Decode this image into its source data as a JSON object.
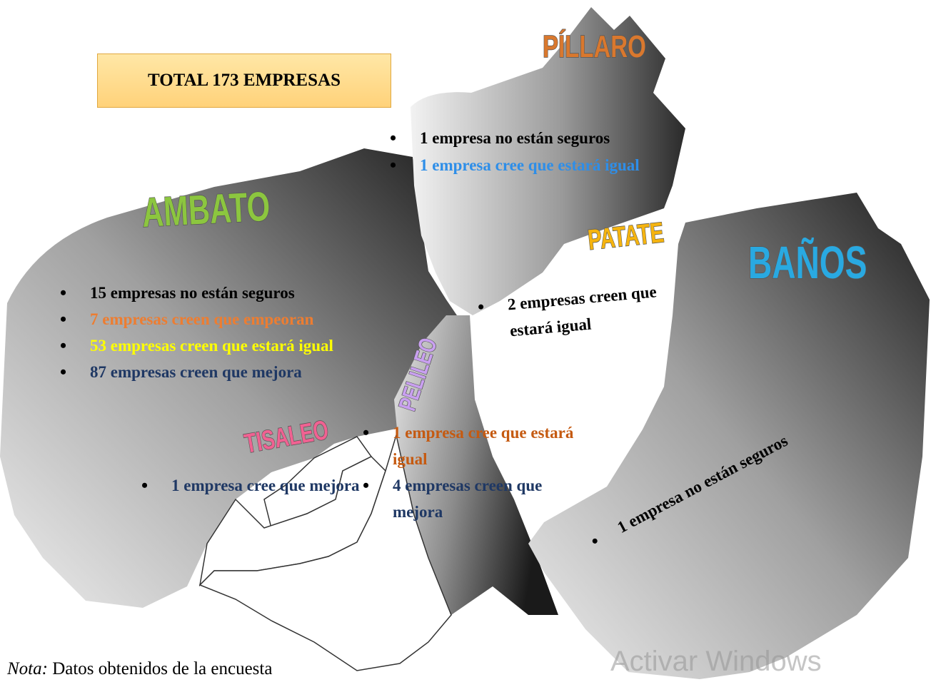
{
  "title": "TOTAL 173 EMPRESAS",
  "regions": [
    {
      "name": "PÍLLARO",
      "color": "#d9782e",
      "items": [
        {
          "text": "1 empresa no están seguros",
          "color": "#000000"
        },
        {
          "text": "1 empresa cree que estará igual",
          "color": "#2e8ee8"
        }
      ]
    },
    {
      "name": "AMBATO",
      "color": "#8cc63f",
      "items": [
        {
          "text": "15 empresas no están seguros",
          "color": "#000000"
        },
        {
          "text": "7 empresas creen que empeoran",
          "color": "#ed7d31"
        },
        {
          "text": "53 empresas creen que estará igual",
          "color": "#ffff00"
        },
        {
          "text": "87 empresas creen que mejora",
          "color": "#1f3864"
        }
      ]
    },
    {
      "name": "PATATE",
      "color": "#f5b410",
      "items": [
        {
          "text": "2 empresas creen que estará igual",
          "color": "#000000"
        }
      ]
    },
    {
      "name": "BAÑOS",
      "color": "#29a9e1",
      "items": [
        {
          "text": "1 empresa no están seguros",
          "color": "#000000"
        }
      ]
    },
    {
      "name": "PELILEO",
      "color": "#c9a0f0",
      "items": [
        {
          "text": "1 empresa cree que estará igual",
          "color": "#c55a11"
        },
        {
          "text": "4 empresas creen que mejora",
          "color": "#1f3864"
        }
      ]
    },
    {
      "name": "TISALEO",
      "color": "#f06292",
      "items": [
        {
          "text": "1 empresa cree que mejora",
          "color": "#1f3864"
        }
      ]
    }
  ],
  "note": {
    "label": "Nota:",
    "text": "Datos obtenidos de la encuesta"
  },
  "watermark": "Activar Windows"
}
